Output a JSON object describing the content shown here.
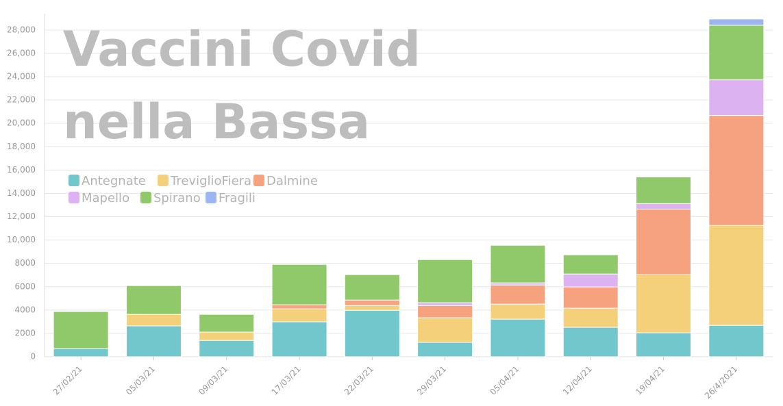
{
  "chart_data": {
    "type": "stacked_bar",
    "title": [
      "Vaccini Covid",
      "nella Bassa"
    ],
    "categories": [
      "27/02/21",
      "05/03/21",
      "09/03/21",
      "17/03/21",
      "22/03/21",
      "29/03/21",
      "05/04/21",
      "12/04/21",
      "19/04/21",
      "26/4/2021"
    ],
    "series": [
      {
        "name": "Antegnate",
        "color": "#72c7cc",
        "values": [
          700,
          2640,
          1400,
          2990,
          3980,
          1230,
          3220,
          2520,
          2050,
          2690
        ]
      },
      {
        "name": "TreviglioFiera",
        "color": "#f4d07b",
        "values": [
          0,
          990,
          710,
          1110,
          410,
          2110,
          1290,
          1640,
          4980,
          8560
        ]
      },
      {
        "name": "Dalmine",
        "color": "#f6a27e",
        "values": [
          0,
          0,
          0,
          350,
          470,
          1050,
          1640,
          1820,
          5620,
          9430
        ]
      },
      {
        "name": "Mapello",
        "color": "#dcb2f0",
        "values": [
          0,
          0,
          0,
          0,
          0,
          240,
          180,
          1110,
          470,
          3050
        ]
      },
      {
        "name": "Spirano",
        "color": "#90c96a",
        "values": [
          3170,
          2460,
          1520,
          3460,
          2170,
          3690,
          3220,
          1640,
          2290,
          4680
        ]
      },
      {
        "name": "Fragili",
        "color": "#9db5f0",
        "values": [
          0,
          0,
          0,
          0,
          0,
          0,
          0,
          0,
          0,
          530
        ]
      }
    ],
    "ylim": [
      0,
      29400
    ],
    "yticks": [
      0,
      2000,
      4000,
      6000,
      8000,
      {
        "value": 10000,
        "label": "10,000"
      },
      {
        "value": 12000,
        "label": "12,000"
      },
      {
        "value": 14000,
        "label": "14,000"
      },
      {
        "value": 16000,
        "label": "16,000"
      },
      {
        "value": 18000,
        "label": "18,000"
      },
      {
        "value": 20000,
        "label": "20,000"
      },
      {
        "value": 22000,
        "label": "22,000"
      },
      {
        "value": 24000,
        "label": "24,000"
      },
      {
        "value": 26000,
        "label": "26,000"
      },
      {
        "value": 28000,
        "label": "28,000"
      }
    ],
    "grid": true,
    "legend": "top-left"
  }
}
